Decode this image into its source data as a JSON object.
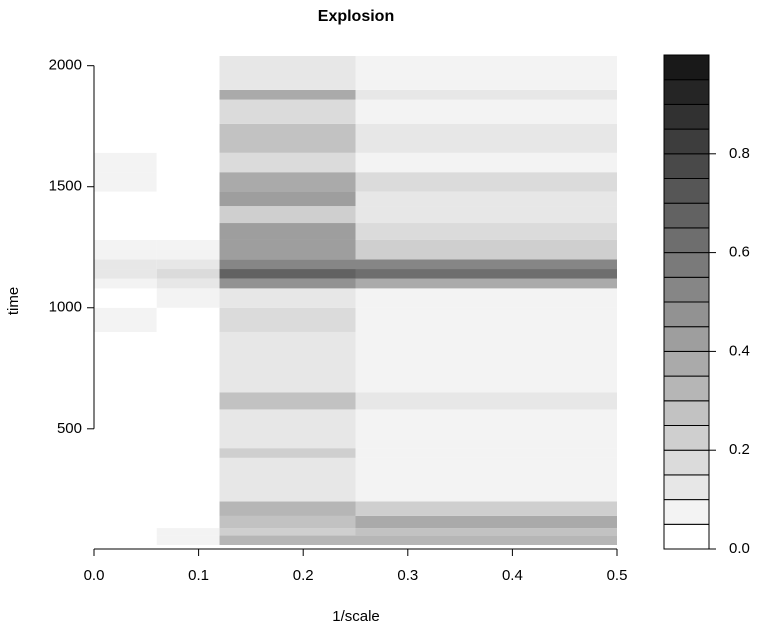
{
  "chart_data": {
    "type": "heatmap",
    "title": "Explosion",
    "x_label": "1/scale",
    "y_label": "time",
    "xlim": [
      0,
      0.5
    ],
    "ylim": [
      20,
      2040
    ],
    "xticks": [
      {
        "value": 0,
        "label": "0.0"
      },
      0.1,
      0.2,
      0.3,
      0.4,
      0.5
    ],
    "yticks": [
      500,
      1000,
      1500,
      2000
    ],
    "x_edges": [
      0,
      0.06,
      0.12,
      0.25,
      0.5
    ],
    "y_edges": [
      20,
      60,
      90,
      140,
      200,
      380,
      420,
      580,
      650,
      900,
      1000,
      1080,
      1120,
      1160,
      1200,
      1280,
      1350,
      1420,
      1480,
      1560,
      1640,
      1760,
      1860,
      1900,
      2040
    ],
    "z": [
      [
        0,
        0.05,
        0.3,
        0.3
      ],
      [
        0,
        0.05,
        0.2,
        0.25
      ],
      [
        0,
        0,
        0.25,
        0.35
      ],
      [
        0,
        0,
        0.3,
        0.2
      ],
      [
        0,
        0,
        0.1,
        0.05
      ],
      [
        0,
        0,
        0.2,
        0.05
      ],
      [
        0,
        0,
        0.1,
        0.05
      ],
      [
        0,
        0,
        0.25,
        0.1
      ],
      [
        0,
        0,
        0.1,
        0.05
      ],
      [
        0.05,
        0,
        0.15,
        0.05
      ],
      [
        0,
        0.05,
        0.1,
        0.05
      ],
      [
        0.05,
        0.1,
        0.45,
        0.35
      ],
      [
        0.1,
        0.15,
        0.65,
        0.6
      ],
      [
        0.1,
        0.1,
        0.5,
        0.5
      ],
      [
        0.05,
        0.05,
        0.4,
        0.2
      ],
      [
        0,
        0,
        0.4,
        0.15
      ],
      [
        0,
        0,
        0.2,
        0.1
      ],
      [
        0,
        0,
        0.4,
        0.1
      ],
      [
        0.05,
        0,
        0.35,
        0.15
      ],
      [
        0.05,
        0,
        0.15,
        0.05
      ],
      [
        0,
        0,
        0.25,
        0.1
      ],
      [
        0,
        0,
        0.15,
        0.05
      ],
      [
        0,
        0,
        0.35,
        0.1
      ],
      [
        0,
        0,
        0.1,
        0.05
      ]
    ],
    "levels": [
      0,
      0.05,
      0.1,
      0.15,
      0.2,
      0.25,
      0.3,
      0.35,
      0.4,
      0.45,
      0.5,
      0.55,
      0.6,
      0.65,
      0.7,
      0.75,
      0.8,
      0.85,
      0.9,
      0.95
    ],
    "colorbar_ticks": [
      {
        "value": 0,
        "label": "0.0"
      },
      0.2,
      0.4,
      0.6,
      0.8
    ]
  }
}
